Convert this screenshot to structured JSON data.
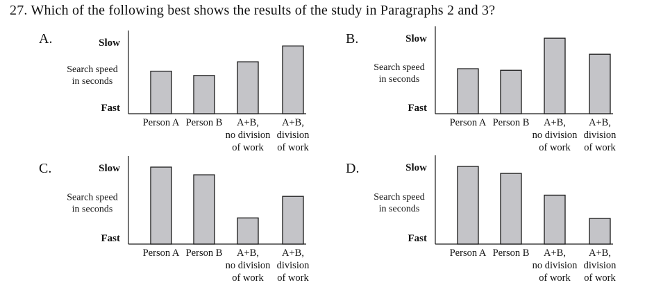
{
  "question": {
    "number": "27.",
    "text": "Which of the following best shows the results of the study in Paragraphs 2 and 3?"
  },
  "colors": {
    "bar_fill": "#c4c4c8",
    "bar_stroke": "#1a1a1a",
    "axis": "#1a1a1a"
  },
  "chart_data": [
    {
      "type": "bar",
      "option": "A.",
      "y_top_label": "Slow",
      "y_bottom_label": "Fast",
      "ylabel": [
        "Search speed",
        "in seconds"
      ],
      "categories": [
        [
          "Person A"
        ],
        [
          "Person B"
        ],
        [
          "A+B,",
          "no division",
          "of work"
        ],
        [
          "A+B,",
          "division",
          "of work"
        ]
      ],
      "values": [
        59,
        53,
        72,
        94
      ],
      "ylim": [
        0,
        100
      ]
    },
    {
      "type": "bar",
      "option": "B.",
      "y_top_label": "Slow",
      "y_bottom_label": "Fast",
      "ylabel": [
        "Search speed",
        "in seconds"
      ],
      "categories": [
        [
          "Person A"
        ],
        [
          "Person B"
        ],
        [
          "A+B,",
          "no division",
          "of work"
        ],
        [
          "A+B,",
          "division",
          "of work"
        ]
      ],
      "values": [
        59,
        57,
        99,
        78
      ],
      "ylim": [
        0,
        100
      ]
    },
    {
      "type": "bar",
      "option": "C.",
      "y_top_label": "Slow",
      "y_bottom_label": "Fast",
      "ylabel": [
        "Search speed",
        "in seconds"
      ],
      "categories": [
        [
          "Person A"
        ],
        [
          "Person B"
        ],
        [
          "A+B,",
          "no division",
          "of work"
        ],
        [
          "A+B,",
          "division",
          "of work"
        ]
      ],
      "values": [
        100,
        90,
        34,
        62
      ],
      "ylim": [
        0,
        100
      ]
    },
    {
      "type": "bar",
      "option": "D.",
      "y_top_label": "Slow",
      "y_bottom_label": "Fast",
      "ylabel": [
        "Search speed",
        "in seconds"
      ],
      "categories": [
        [
          "Person A"
        ],
        [
          "Person B"
        ],
        [
          "A+B,",
          "no division",
          "of work"
        ],
        [
          "A+B,",
          "division",
          "of work"
        ]
      ],
      "values": [
        100,
        91,
        63,
        33
      ],
      "ylim": [
        0,
        100
      ]
    }
  ]
}
